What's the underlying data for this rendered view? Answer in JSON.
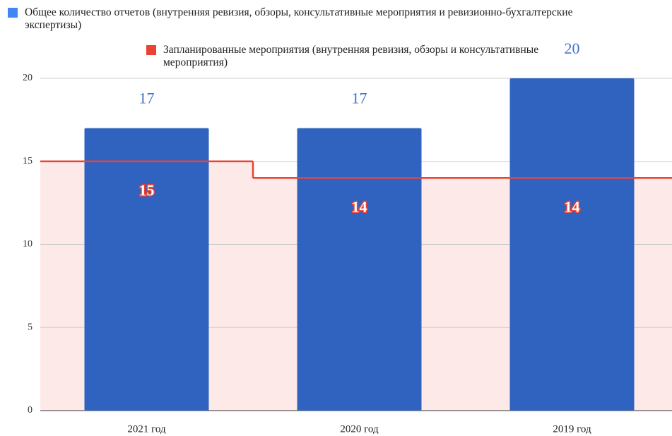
{
  "chart_data": {
    "type": "bar",
    "categories": [
      "2021 год",
      "2020 год",
      "2019 год"
    ],
    "series": [
      {
        "name": "Общее количество отчетов (внутренняя ревизия, обзоры, консультативные мероприятия и ревизионно-бухгалтерские экспертизы)",
        "color": "#2f63bf",
        "legend_color": "#4285f4",
        "type": "bar",
        "values": [
          17,
          17,
          20
        ]
      },
      {
        "name": "Запланированные мероприятия (внутренняя ревизия, обзоры и консультативные мероприятия)",
        "color": "#ea4335",
        "area_color": "#fde9e8",
        "type": "stepped-area",
        "values": [
          15,
          14,
          14
        ]
      }
    ],
    "ylim": [
      0,
      20
    ],
    "yticks": [
      0,
      5,
      10,
      15,
      20
    ],
    "grid": true
  }
}
